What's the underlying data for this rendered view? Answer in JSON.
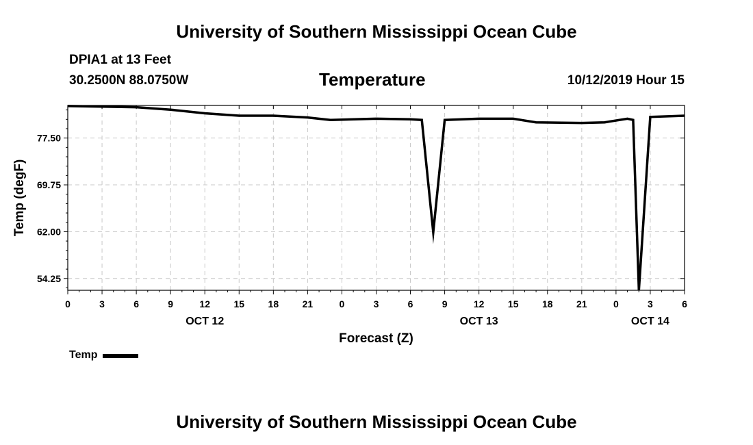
{
  "header": {
    "title": "University of Southern Mississippi Ocean Cube",
    "station": "DPIA1 at 13 Feet",
    "coords": "30.2500N 88.0750W",
    "variable": "Temperature",
    "datetime": "10/12/2019 Hour 15"
  },
  "footer": {
    "title": "University of Southern Mississippi Ocean Cube"
  },
  "chart_data": {
    "type": "line",
    "title": "Temperature",
    "xlabel": "Forecast (Z)",
    "ylabel": "Temp (degF)",
    "x_unit": "forecast hour (0 = OCT 12 00Z)",
    "xlim": [
      0,
      54
    ],
    "ylim": [
      52.3,
      82.9
    ],
    "yticks": [
      54.25,
      62.0,
      69.75,
      77.5
    ],
    "ytick_labels": [
      "54.25",
      "62.00",
      "69.75",
      "77.50"
    ],
    "xticks": [
      0,
      3,
      6,
      9,
      12,
      15,
      18,
      21,
      24,
      27,
      30,
      33,
      36,
      39,
      42,
      45,
      48,
      51,
      54
    ],
    "xtick_labels": [
      "0",
      "3",
      "6",
      "9",
      "12",
      "15",
      "18",
      "21",
      "0",
      "3",
      "6",
      "9",
      "12",
      "15",
      "18",
      "21",
      "0",
      "3",
      "6"
    ],
    "date_labels": [
      {
        "x": 12,
        "label": "OCT 12"
      },
      {
        "x": 36,
        "label": "OCT 13"
      },
      {
        "x": 51,
        "label": "OCT 14"
      }
    ],
    "grid": true,
    "legend_position": "bottom-left",
    "series": [
      {
        "name": "Temp",
        "color": "#000000",
        "x": [
          0,
          3,
          6,
          9,
          12,
          15,
          18,
          21,
          23,
          27,
          30,
          31,
          32,
          33,
          36,
          39,
          41,
          45,
          47,
          49,
          49.5,
          50,
          51,
          54
        ],
        "y": [
          82.8,
          82.7,
          82.6,
          82.2,
          81.6,
          81.2,
          81.2,
          80.9,
          80.5,
          80.7,
          80.6,
          80.5,
          61.9,
          80.5,
          80.7,
          80.7,
          80.1,
          80.0,
          80.1,
          80.7,
          80.5,
          52.3,
          81.0,
          81.2
        ]
      }
    ]
  }
}
